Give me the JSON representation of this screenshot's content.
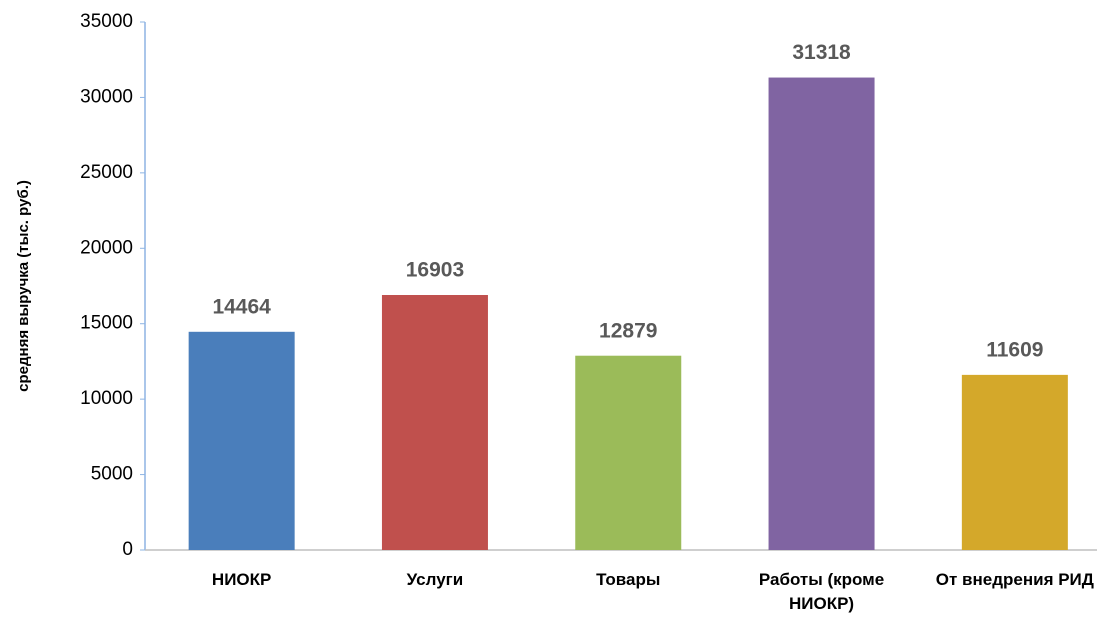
{
  "chart_data": {
    "type": "bar",
    "ylabel": "средняя выручка (тыс. руб.)",
    "categories": [
      "НИОКР",
      "Услуги",
      "Товары",
      "Работы (кроме НИОКР)",
      "От внедрения РИД"
    ],
    "values": [
      14464,
      16903,
      12879,
      31318,
      11609
    ],
    "colors": [
      "#4a7ebb",
      "#c0504d",
      "#9bbb59",
      "#8064a2",
      "#d4a82a"
    ],
    "ylim": [
      0,
      35000
    ],
    "yticks": [
      0,
      5000,
      10000,
      15000,
      20000,
      25000,
      30000,
      35000
    ],
    "grid": false
  }
}
